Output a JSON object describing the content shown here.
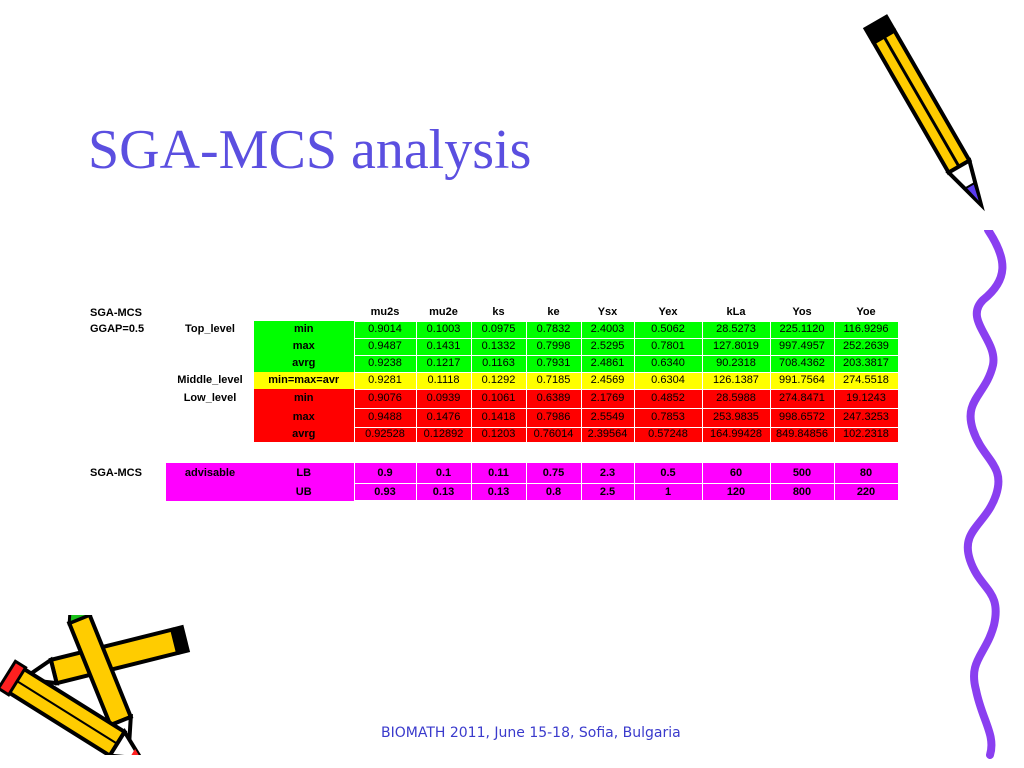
{
  "slide": {
    "title": "SGA-MCS analysis",
    "footer": "BIOMATH 2011, June 15-18, Sofia, Bulgaria"
  },
  "table1": {
    "corner": "SGA-MCS",
    "columns": [
      "mu2s",
      "mu2e",
      "ks",
      "ke",
      "Ysx",
      "Yex",
      "kLa",
      "Yos",
      "Yoe"
    ],
    "ggap": "GGAP=0.5",
    "groups": {
      "top": "Top_level",
      "middle": "Middle_level",
      "low": "Low_level"
    },
    "rows": [
      {
        "stat": "min",
        "values": [
          "0.9014",
          "0.1003",
          "0.0975",
          "0.7832",
          "2.4003",
          "0.5062",
          "28.5273",
          "225.1120",
          "116.9296"
        ]
      },
      {
        "stat": "max",
        "values": [
          "0.9487",
          "0.1431",
          "0.1332",
          "0.7998",
          "2.5295",
          "0.7801",
          "127.8019",
          "997.4957",
          "252.2639"
        ]
      },
      {
        "stat": "avrg",
        "values": [
          "0.9238",
          "0.1217",
          "0.1163",
          "0.7931",
          "2.4861",
          "0.6340",
          "90.2318",
          "708.4362",
          "203.3817"
        ]
      },
      {
        "stat": "min=max=avr",
        "values": [
          "0.9281",
          "0.1118",
          "0.1292",
          "0.7185",
          "2.4569",
          "0.6304",
          "126.1387",
          "991.7564",
          "274.5518"
        ]
      },
      {
        "stat": "min",
        "values": [
          "0.9076",
          "0.0939",
          "0.1061",
          "0.6389",
          "2.1769",
          "0.4852",
          "28.5988",
          "274.8471",
          "19.1243"
        ]
      },
      {
        "stat": "max",
        "values": [
          "0.9488",
          "0.1476",
          "0.1418",
          "0.7986",
          "2.5549",
          "0.7853",
          "253.9835",
          "998.6572",
          "247.3253"
        ]
      },
      {
        "stat": "avrg",
        "values": [
          "0.92528",
          "0.12892",
          "0.1203",
          "0.76014",
          "2.39564",
          "0.57248",
          "164.99428",
          "849.84856",
          "102.2318"
        ]
      }
    ]
  },
  "table2": {
    "label": "SGA-MCS",
    "advisable": "advisable",
    "rows": [
      {
        "bound": "LB",
        "values": [
          "0.9",
          "0.1",
          "0.11",
          "0.75",
          "2.3",
          "0.5",
          "60",
          "500",
          "80"
        ]
      },
      {
        "bound": "UB",
        "values": [
          "0.93",
          "0.13",
          "0.13",
          "0.8",
          "2.5",
          "1",
          "120",
          "800",
          "220"
        ]
      }
    ]
  },
  "decor": {
    "top_right": "pencil-icon",
    "bottom_left": "crossed-pencils-icon",
    "right_edge": "wavy-line-border",
    "colors": {
      "title": "#5b4fe0",
      "green": "#00ff00",
      "yellow": "#ffff00",
      "red": "#ff0000",
      "magenta": "#ff00ff",
      "border_line": "#8a3ff0"
    }
  }
}
